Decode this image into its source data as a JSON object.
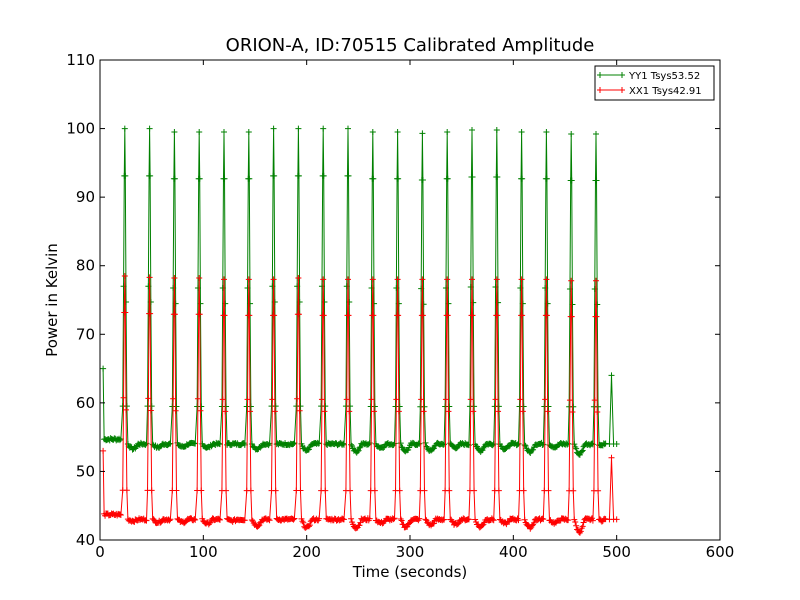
{
  "chart_data": {
    "type": "line",
    "title": "ORION-A, ID:70515 Calibrated Amplitude",
    "xlabel": "Time (seconds)",
    "ylabel": "Power in Kelvin",
    "xlim": [
      0,
      600
    ],
    "ylim": [
      40,
      110
    ],
    "x_ticks": [
      0,
      100,
      200,
      300,
      400,
      500,
      600
    ],
    "y_ticks": [
      40,
      50,
      60,
      70,
      80,
      90,
      100,
      110
    ],
    "grid": false,
    "legend_position": "top-right",
    "series": [
      {
        "name": "YY1 Tsys53.52",
        "color": "#008000",
        "start": {
          "x": 3,
          "y": 65
        },
        "baseline": 54,
        "peak_x": [
          24,
          48,
          72,
          96,
          120,
          144,
          168,
          192,
          216,
          240,
          264,
          288,
          312,
          336,
          360,
          384,
          408,
          432,
          456,
          480
        ],
        "peak_y": [
          100,
          100,
          99.5,
          99.5,
          99.5,
          99.5,
          100,
          100,
          100,
          100,
          99.5,
          99.5,
          99.3,
          99.5,
          99.8,
          99.8,
          99.5,
          99.5,
          99.2,
          99.2
        ],
        "dips_y": [
          53.3,
          53.5,
          53.6,
          53.5,
          54.0,
          53.3,
          54.0,
          53.0,
          54.0,
          52.9,
          53.5,
          53.0,
          53.0,
          53.5,
          53.0,
          53.3,
          52.8,
          53.6,
          52.5,
          53.8
        ],
        "end": [
          {
            "x": 493,
            "y": 54
          },
          {
            "x": 495,
            "y": 64
          },
          {
            "x": 497,
            "y": 54
          },
          {
            "x": 500,
            "y": 54
          }
        ]
      },
      {
        "name": "XX1 Tsys42.91",
        "color": "#ff0000",
        "start": {
          "x": 3,
          "y": 53
        },
        "baseline": 43,
        "peak_x": [
          24,
          48,
          72,
          96,
          120,
          144,
          168,
          192,
          216,
          240,
          264,
          288,
          312,
          336,
          360,
          384,
          408,
          432,
          456,
          480
        ],
        "peak_y": [
          78.5,
          78.3,
          78.2,
          78.2,
          78.0,
          78.0,
          78.0,
          78.2,
          78.0,
          78.0,
          78.0,
          78.0,
          78.0,
          78.0,
          78.0,
          78.0,
          78.0,
          78.0,
          77.8,
          77.8
        ],
        "dips_y": [
          42.8,
          42.6,
          42.6,
          42.4,
          42.8,
          42.1,
          43.0,
          41.8,
          43.0,
          41.8,
          42.5,
          41.9,
          42.2,
          42.3,
          41.9,
          42.4,
          41.8,
          42.5,
          41.2,
          42.8
        ],
        "end": [
          {
            "x": 493,
            "y": 43
          },
          {
            "x": 495,
            "y": 52
          },
          {
            "x": 497,
            "y": 43
          },
          {
            "x": 500,
            "y": 43
          }
        ]
      }
    ]
  }
}
